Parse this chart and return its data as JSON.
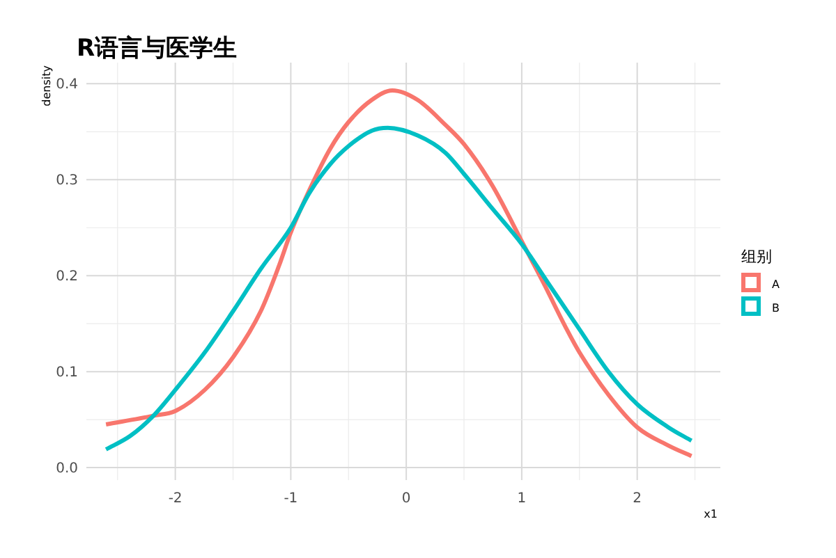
{
  "chart_data": {
    "type": "line",
    "title": "R语言与医学生",
    "xlabel": "x1",
    "ylabel": "density",
    "legend_title": "组别",
    "legend": "right",
    "grid": true,
    "xlim": [
      -2.77,
      2.72
    ],
    "ylim": [
      -0.013,
      0.422
    ],
    "xticks": [
      -2,
      -1,
      0,
      1,
      2
    ],
    "yticks": [
      {
        "value": 0,
        "label": "0.0"
      },
      {
        "value": 0.1,
        "label": "0.1"
      },
      {
        "value": 0.2,
        "label": "0.2"
      },
      {
        "value": 0.3,
        "label": "0.3"
      },
      {
        "value": 0.4,
        "label": "0.4"
      }
    ],
    "series": [
      {
        "name": "A",
        "color": "#f8766d",
        "x": [
          -2.6,
          -2.19,
          -2.0,
          -1.745,
          -1.5,
          -1.26,
          -1.1,
          -1.0,
          -0.82,
          -0.66,
          -0.5,
          -0.3,
          -0.12,
          0.1,
          0.34,
          0.5,
          0.745,
          1.0,
          1.19,
          1.39,
          1.5,
          1.75,
          2.0,
          2.27,
          2.47
        ],
        "values": [
          0.045,
          0.054,
          0.059,
          0.081,
          0.115,
          0.163,
          0.211,
          0.245,
          0.294,
          0.332,
          0.36,
          0.383,
          0.393,
          0.383,
          0.357,
          0.337,
          0.294,
          0.236,
          0.192,
          0.144,
          0.12,
          0.076,
          0.042,
          0.023,
          0.012
        ]
      },
      {
        "name": "B",
        "color": "#00bfc4",
        "x": [
          -2.6,
          -2.39,
          -2.19,
          -2.0,
          -1.745,
          -1.5,
          -1.26,
          -1.0,
          -0.84,
          -0.66,
          -0.5,
          -0.3,
          -0.16,
          0.1,
          0.34,
          0.5,
          0.745,
          1.0,
          1.23,
          1.5,
          1.75,
          2.0,
          2.27,
          2.47
        ],
        "values": [
          0.019,
          0.033,
          0.054,
          0.081,
          0.12,
          0.163,
          0.207,
          0.25,
          0.286,
          0.316,
          0.335,
          0.351,
          0.354,
          0.346,
          0.328,
          0.306,
          0.27,
          0.233,
          0.192,
          0.144,
          0.1,
          0.066,
          0.042,
          0.028
        ]
      }
    ]
  }
}
